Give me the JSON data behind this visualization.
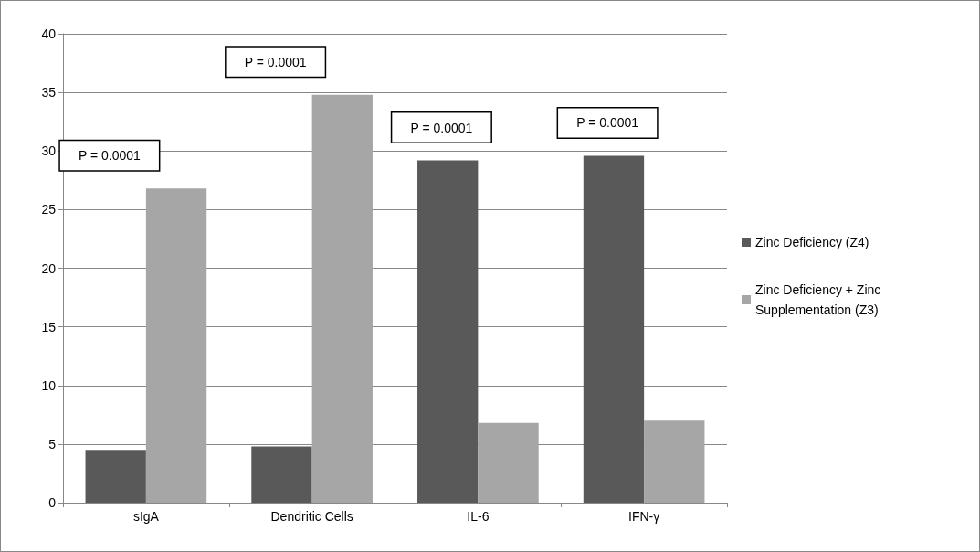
{
  "chart_data": {
    "type": "bar",
    "categories": [
      "sIgA",
      "Dendritic Cells",
      "IL-6",
      "IFN-γ"
    ],
    "series": [
      {
        "name": "Zinc Deficiency (Z4)",
        "color": "#595959",
        "values": [
          4.5,
          4.8,
          29.2,
          29.6
        ]
      },
      {
        "name": "Zinc Deficiency + Zinc Supplementation (Z3)",
        "color": "#a6a6a6",
        "values": [
          26.8,
          34.8,
          6.8,
          7.0
        ]
      }
    ],
    "ylim": [
      0,
      40
    ],
    "yticks": [
      0,
      5,
      10,
      15,
      20,
      25,
      30,
      35,
      40
    ],
    "grid": "y",
    "legend": "right",
    "annotations": [
      "P = 0.0001",
      "P = 0.0001",
      "P = 0.0001",
      "P = 0.0001"
    ]
  }
}
